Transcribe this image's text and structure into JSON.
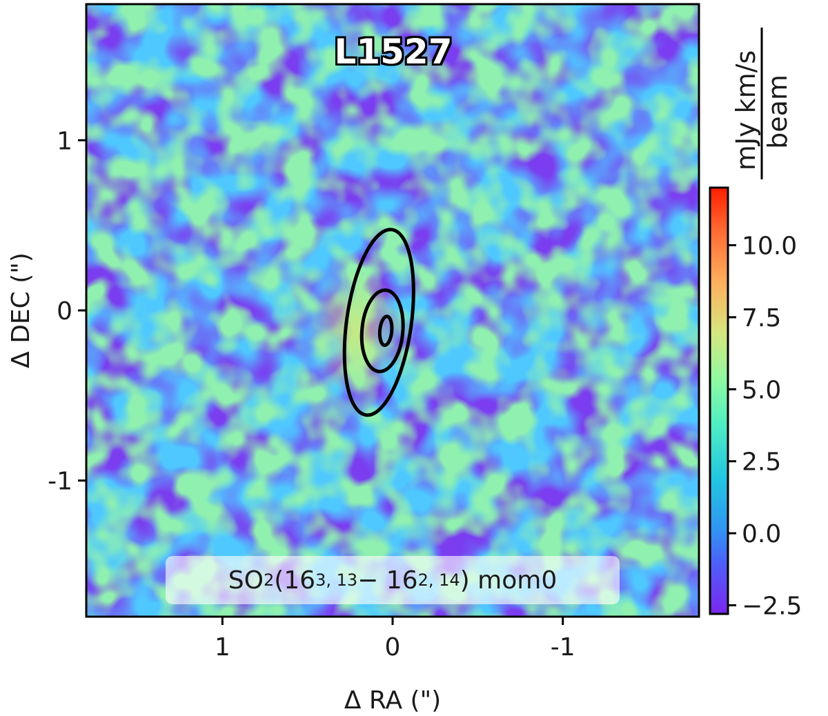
{
  "chart_data": {
    "type": "heatmap",
    "title": "L1527",
    "annotation": {
      "molecule": "SO",
      "subscript_molecule": "2",
      "open": " (16",
      "upper": "3, 13",
      "dash": " − 16",
      "lower": "2, 14",
      "close": ") mom0"
    },
    "xlabel": "Δ RA (\")",
    "ylabel": "Δ DEC (\")",
    "xlim": [
      1.8,
      -1.8
    ],
    "ylim": [
      -1.8,
      1.8
    ],
    "xticks": [
      {
        "value": 1,
        "label": "1"
      },
      {
        "value": 0,
        "label": "0"
      },
      {
        "value": -1,
        "label": "-1"
      }
    ],
    "yticks": [
      {
        "value": 1,
        "label": "1"
      },
      {
        "value": 0,
        "label": "0"
      },
      {
        "value": -1,
        "label": "-1"
      }
    ],
    "colorbar": {
      "label_numerator": "mJy km/s",
      "label_denominator": "beam",
      "range": [
        -2.8,
        12.0
      ],
      "ticks": [
        {
          "value": -2.5,
          "label": "−2.5"
        },
        {
          "value": 0.0,
          "label": "0.0"
        },
        {
          "value": 2.5,
          "label": "2.5"
        },
        {
          "value": 5.0,
          "label": "5.0"
        },
        {
          "value": 7.5,
          "label": "7.5"
        },
        {
          "value": 10.0,
          "label": "10.0"
        }
      ],
      "colormap": "rainbow"
    },
    "contours": [
      {
        "level": 1,
        "center": [
          0.08,
          -0.07
        ],
        "semi_major": 0.55,
        "semi_minor": 0.19,
        "pa_deg": 8
      },
      {
        "level": 2,
        "center": [
          0.06,
          -0.12
        ],
        "semi_major": 0.24,
        "semi_minor": 0.12,
        "pa_deg": 5
      },
      {
        "level": 3,
        "center": [
          0.04,
          -0.12
        ],
        "semi_major": 0.085,
        "semi_minor": 0.035,
        "pa_deg": 5
      }
    ],
    "colors": {
      "contour": "#000000",
      "axes": "#000000",
      "low": "#7c26f0",
      "high": "#ff2a00"
    }
  }
}
